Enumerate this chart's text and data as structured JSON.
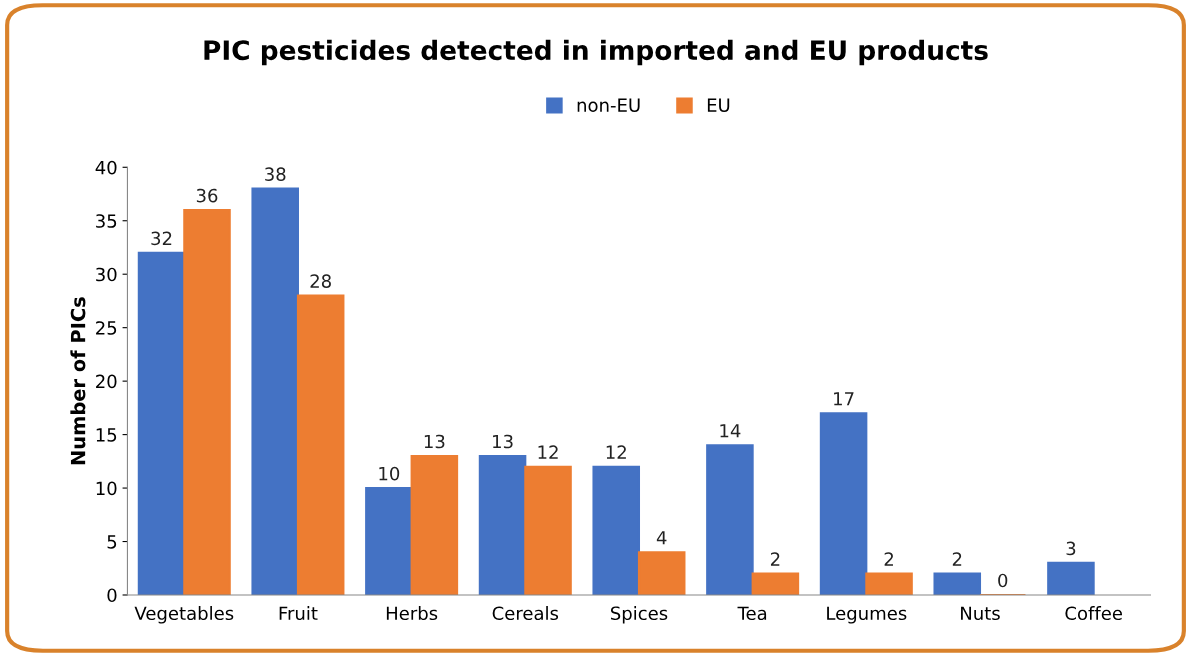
{
  "chart_data": {
    "type": "bar",
    "title": "PIC pesticides detected in imported and EU products",
    "ylabel": "Number of PICs",
    "categories": [
      "Vegetables",
      "Fruit",
      "Herbs",
      "Cereals",
      "Spices",
      "Tea",
      "Legumes",
      "Nuts",
      "Coffee"
    ],
    "series": [
      {
        "name": "non-EU",
        "color": "#4472c4",
        "values": [
          32,
          38,
          10,
          13,
          12,
          14,
          17,
          2,
          3
        ]
      },
      {
        "name": "EU",
        "color": "#ed7d31",
        "values": [
          36,
          28,
          13,
          12,
          4,
          2,
          2,
          0,
          null
        ]
      }
    ],
    "ylim": [
      0,
      40
    ],
    "yticks": [
      0,
      5,
      10,
      15,
      20,
      25,
      30,
      35,
      40
    ],
    "grid": false,
    "legend": "top",
    "data_labels": true
  }
}
